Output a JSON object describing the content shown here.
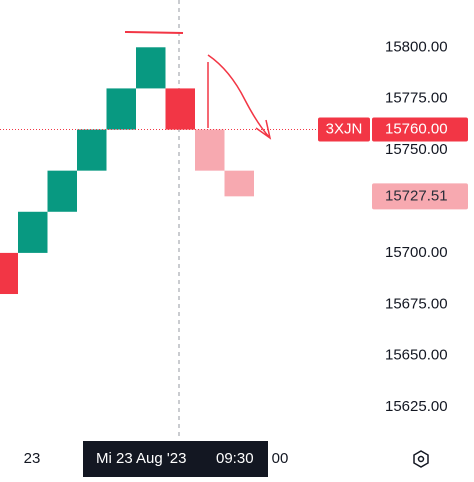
{
  "chart_data": {
    "type": "renko",
    "bricks": [
      {
        "open": 15700,
        "close": 15680,
        "color": "#f23645"
      },
      {
        "open": 15700,
        "close": 15720,
        "color": "#089981"
      },
      {
        "open": 15720,
        "close": 15740,
        "color": "#089981"
      },
      {
        "open": 15740,
        "close": 15760,
        "color": "#089981"
      },
      {
        "open": 15760,
        "close": 15780,
        "color": "#089981"
      },
      {
        "open": 15780,
        "close": 15800,
        "color": "#089981"
      },
      {
        "open": 15780,
        "close": 15760,
        "color": "#f23645"
      },
      {
        "open": 15760,
        "close": 15740,
        "color": "#f7a9b0"
      },
      {
        "open": 15740,
        "close": 15727.51,
        "color": "#f7a9b0"
      }
    ],
    "ylim": [
      15609,
      15823
    ],
    "yticks": [
      {
        "value": 15625,
        "label": "15625.00"
      },
      {
        "value": 15650,
        "label": "15650.00"
      },
      {
        "value": 15675,
        "label": "15675.00"
      },
      {
        "value": 15700,
        "label": "15700.00"
      },
      {
        "value": 15750,
        "label": "15750.00"
      },
      {
        "value": 15775,
        "label": "15775.00"
      },
      {
        "value": 15800,
        "label": "15800.00"
      }
    ],
    "x_labels": [
      "23",
      "00"
    ],
    "crosshair_label": {
      "date": "Mi 23 Aug '23",
      "time": "09:30"
    },
    "symbol_label": "3XJN",
    "last_price": {
      "value": 15760,
      "label": "15760.00"
    },
    "pending_price": {
      "value": 15727.51,
      "label": "15727.51"
    }
  }
}
